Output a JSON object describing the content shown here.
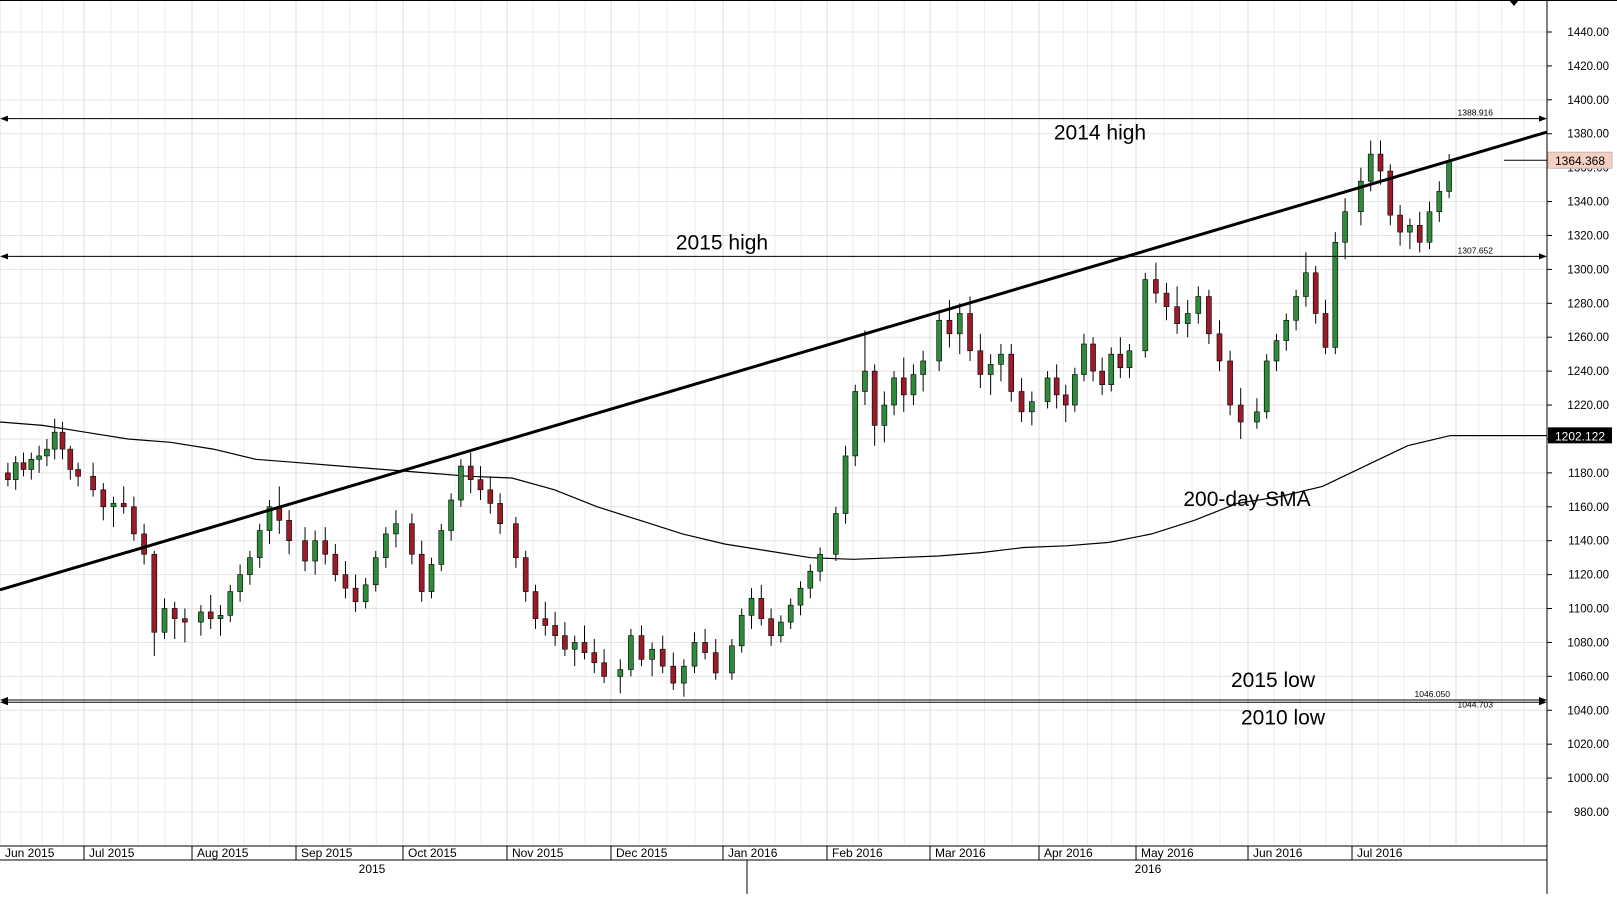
{
  "chart_data": {
    "type": "candlestick",
    "title": "",
    "ylim": [
      960,
      1460
    ],
    "y_ticks": [
      "1440.00",
      "1420.00",
      "1400.00",
      "1380.00",
      "1360.00",
      "1340.00",
      "1320.00",
      "1300.00",
      "1280.00",
      "1260.00",
      "1240.00",
      "1220.00",
      "1200.00",
      "1180.00",
      "1160.00",
      "1140.00",
      "1120.00",
      "1100.00",
      "1080.00",
      "1060.00",
      "1040.00",
      "1020.00",
      "1000.00",
      "980.00"
    ],
    "x_month_labels": [
      "Jun 2015",
      "Jul 2015",
      "Aug 2015",
      "Sep 2015",
      "Oct 2015",
      "Nov 2015",
      "Dec 2015",
      "Jan 2016",
      "Feb 2016",
      "Mar 2016",
      "Apr 2016",
      "May 2016",
      "Jun 2016",
      "Jul 2016"
    ],
    "x_year_labels": [
      "2015",
      "2016"
    ],
    "last_price_label": "1364.368",
    "sma_value_label": "1202.122",
    "horizontal_levels": [
      {
        "value": 1388.916,
        "label": "1388.916",
        "annotation": "2014 high"
      },
      {
        "value": 1307.652,
        "label": "1307.652",
        "annotation": "2015 high"
      },
      {
        "value": 1046.05,
        "label": "1046.050",
        "annotation": "2015 low"
      },
      {
        "value": 1044.703,
        "label": "1044.703",
        "annotation": "2010 low"
      }
    ],
    "trendline": {
      "start": 1111,
      "end": 1381
    },
    "sma_label": "200-day SMA",
    "sma_series": [
      1210,
      1208,
      1204,
      1200,
      1198,
      1194,
      1188,
      1186,
      1184,
      1182,
      1180,
      1178,
      1177,
      1170,
      1160,
      1152,
      1144,
      1138,
      1134,
      1130,
      1129,
      1130,
      1131,
      1133,
      1136,
      1137,
      1139,
      1144,
      1152,
      1162,
      1166,
      1172,
      1184,
      1196,
      1202,
      1202
    ],
    "candles": [
      {
        "month": "Jun 2015",
        "ohlc": [
          [
            1180,
            1186,
            1172,
            1176
          ],
          [
            1176,
            1190,
            1170,
            1186
          ],
          [
            1186,
            1192,
            1178,
            1182
          ],
          [
            1182,
            1192,
            1176,
            1188
          ],
          [
            1188,
            1196,
            1180,
            1190
          ],
          [
            1190,
            1200,
            1184,
            1194
          ],
          [
            1194,
            1212,
            1188,
            1204
          ],
          [
            1204,
            1210,
            1188,
            1194
          ],
          [
            1194,
            1196,
            1176,
            1182
          ],
          [
            1182,
            1186,
            1172,
            1178
          ]
        ]
      },
      {
        "month": "Jul 2015",
        "ohlc": [
          [
            1178,
            1186,
            1166,
            1170
          ],
          [
            1170,
            1174,
            1152,
            1160
          ],
          [
            1160,
            1166,
            1148,
            1162
          ],
          [
            1162,
            1172,
            1156,
            1160
          ],
          [
            1160,
            1166,
            1140,
            1144
          ],
          [
            1144,
            1150,
            1126,
            1132
          ],
          [
            1132,
            1134,
            1072,
            1086
          ],
          [
            1086,
            1106,
            1082,
            1100
          ],
          [
            1100,
            1104,
            1082,
            1094
          ],
          [
            1094,
            1100,
            1080,
            1092
          ]
        ]
      },
      {
        "month": "Aug 2015",
        "ohlc": [
          [
            1092,
            1102,
            1084,
            1098
          ],
          [
            1098,
            1108,
            1088,
            1094
          ],
          [
            1094,
            1102,
            1084,
            1096
          ],
          [
            1096,
            1114,
            1092,
            1110
          ],
          [
            1110,
            1126,
            1104,
            1120
          ],
          [
            1120,
            1134,
            1114,
            1130
          ],
          [
            1130,
            1150,
            1124,
            1146
          ],
          [
            1146,
            1164,
            1138,
            1160
          ],
          [
            1160,
            1172,
            1144,
            1152
          ],
          [
            1152,
            1158,
            1132,
            1140
          ]
        ]
      },
      {
        "month": "Sep 2015",
        "ohlc": [
          [
            1140,
            1148,
            1122,
            1128
          ],
          [
            1128,
            1146,
            1120,
            1140
          ],
          [
            1140,
            1148,
            1126,
            1132
          ],
          [
            1132,
            1138,
            1116,
            1120
          ],
          [
            1120,
            1128,
            1106,
            1112
          ],
          [
            1112,
            1120,
            1098,
            1104
          ],
          [
            1104,
            1118,
            1100,
            1114
          ],
          [
            1114,
            1134,
            1110,
            1130
          ],
          [
            1130,
            1148,
            1124,
            1144
          ],
          [
            1144,
            1158,
            1136,
            1150
          ]
        ]
      },
      {
        "month": "Oct 2015",
        "ohlc": [
          [
            1150,
            1156,
            1126,
            1132
          ],
          [
            1132,
            1140,
            1104,
            1110
          ],
          [
            1110,
            1130,
            1106,
            1126
          ],
          [
            1126,
            1150,
            1122,
            1146
          ],
          [
            1146,
            1168,
            1140,
            1164
          ],
          [
            1164,
            1188,
            1160,
            1184
          ],
          [
            1184,
            1192,
            1168,
            1176
          ],
          [
            1176,
            1184,
            1164,
            1170
          ],
          [
            1170,
            1178,
            1156,
            1162
          ],
          [
            1162,
            1168,
            1144,
            1150
          ]
        ]
      },
      {
        "month": "Nov 2015",
        "ohlc": [
          [
            1150,
            1154,
            1124,
            1130
          ],
          [
            1130,
            1134,
            1104,
            1110
          ],
          [
            1110,
            1114,
            1088,
            1094
          ],
          [
            1094,
            1104,
            1084,
            1090
          ],
          [
            1090,
            1098,
            1078,
            1084
          ],
          [
            1084,
            1092,
            1072,
            1076
          ],
          [
            1076,
            1084,
            1066,
            1080
          ],
          [
            1080,
            1090,
            1070,
            1074
          ],
          [
            1074,
            1082,
            1062,
            1068
          ],
          [
            1068,
            1076,
            1056,
            1060
          ]
        ]
      },
      {
        "month": "Dec 2015",
        "ohlc": [
          [
            1060,
            1070,
            1050,
            1064
          ],
          [
            1064,
            1088,
            1060,
            1084
          ],
          [
            1084,
            1090,
            1066,
            1070
          ],
          [
            1070,
            1080,
            1060,
            1076
          ],
          [
            1076,
            1084,
            1062,
            1066
          ],
          [
            1066,
            1074,
            1052,
            1056
          ],
          [
            1056,
            1070,
            1048,
            1066
          ],
          [
            1066,
            1086,
            1062,
            1080
          ],
          [
            1080,
            1088,
            1070,
            1074
          ],
          [
            1074,
            1082,
            1058,
            1062
          ]
        ]
      },
      {
        "month": "Jan 2016",
        "ohlc": [
          [
            1062,
            1082,
            1058,
            1078
          ],
          [
            1078,
            1100,
            1074,
            1096
          ],
          [
            1096,
            1112,
            1088,
            1106
          ],
          [
            1106,
            1114,
            1090,
            1094
          ],
          [
            1094,
            1100,
            1078,
            1084
          ],
          [
            1084,
            1096,
            1080,
            1092
          ],
          [
            1092,
            1106,
            1088,
            1102
          ],
          [
            1102,
            1116,
            1096,
            1112
          ],
          [
            1112,
            1126,
            1106,
            1122
          ],
          [
            1122,
            1136,
            1116,
            1132
          ]
        ]
      },
      {
        "month": "Feb 2016",
        "ohlc": [
          [
            1132,
            1160,
            1128,
            1156
          ],
          [
            1156,
            1196,
            1150,
            1190
          ],
          [
            1190,
            1232,
            1184,
            1228
          ],
          [
            1228,
            1264,
            1220,
            1240
          ],
          [
            1240,
            1244,
            1196,
            1208
          ],
          [
            1208,
            1228,
            1198,
            1220
          ],
          [
            1220,
            1240,
            1214,
            1236
          ],
          [
            1236,
            1248,
            1216,
            1226
          ],
          [
            1226,
            1244,
            1220,
            1238
          ],
          [
            1238,
            1252,
            1228,
            1246
          ]
        ]
      },
      {
        "month": "Mar 2016",
        "ohlc": [
          [
            1246,
            1276,
            1240,
            1270
          ],
          [
            1270,
            1282,
            1254,
            1262
          ],
          [
            1262,
            1280,
            1250,
            1274
          ],
          [
            1274,
            1284,
            1246,
            1252
          ],
          [
            1252,
            1262,
            1230,
            1238
          ],
          [
            1238,
            1250,
            1226,
            1244
          ],
          [
            1244,
            1256,
            1234,
            1250
          ],
          [
            1250,
            1256,
            1222,
            1228
          ],
          [
            1228,
            1236,
            1210,
            1216
          ],
          [
            1216,
            1228,
            1208,
            1222
          ]
        ]
      },
      {
        "month": "Apr 2016",
        "ohlc": [
          [
            1222,
            1240,
            1218,
            1236
          ],
          [
            1236,
            1244,
            1218,
            1226
          ],
          [
            1226,
            1232,
            1210,
            1220
          ],
          [
            1220,
            1242,
            1216,
            1238
          ],
          [
            1238,
            1262,
            1234,
            1256
          ],
          [
            1256,
            1260,
            1234,
            1240
          ],
          [
            1240,
            1248,
            1226,
            1232
          ],
          [
            1232,
            1254,
            1228,
            1250
          ],
          [
            1250,
            1260,
            1236,
            1242
          ],
          [
            1242,
            1256,
            1236,
            1252
          ]
        ]
      },
      {
        "month": "May 2016",
        "ohlc": [
          [
            1252,
            1298,
            1248,
            1294
          ],
          [
            1294,
            1304,
            1280,
            1286
          ],
          [
            1286,
            1292,
            1270,
            1278
          ],
          [
            1278,
            1290,
            1262,
            1268
          ],
          [
            1268,
            1282,
            1260,
            1274
          ],
          [
            1274,
            1290,
            1268,
            1284
          ],
          [
            1284,
            1288,
            1256,
            1262
          ],
          [
            1262,
            1270,
            1240,
            1246
          ],
          [
            1246,
            1252,
            1214,
            1220
          ],
          [
            1220,
            1230,
            1200,
            1210
          ]
        ]
      },
      {
        "month": "Jun 2016",
        "ohlc": [
          [
            1210,
            1224,
            1206,
            1216
          ],
          [
            1216,
            1250,
            1212,
            1246
          ],
          [
            1246,
            1262,
            1240,
            1258
          ],
          [
            1258,
            1274,
            1252,
            1270
          ],
          [
            1270,
            1288,
            1264,
            1284
          ],
          [
            1284,
            1310,
            1278,
            1298
          ],
          [
            1298,
            1302,
            1268,
            1274
          ],
          [
            1274,
            1282,
            1250,
            1254
          ],
          [
            1254,
            1322,
            1250,
            1316
          ],
          [
            1316,
            1342,
            1306,
            1334
          ]
        ]
      },
      {
        "month": "Jul 2016",
        "ohlc": [
          [
            1334,
            1360,
            1326,
            1352
          ],
          [
            1352,
            1376,
            1346,
            1368
          ],
          [
            1368,
            1376,
            1350,
            1358
          ],
          [
            1358,
            1362,
            1326,
            1332
          ],
          [
            1332,
            1338,
            1314,
            1322
          ],
          [
            1322,
            1330,
            1312,
            1326
          ],
          [
            1326,
            1334,
            1310,
            1316
          ],
          [
            1316,
            1340,
            1312,
            1334
          ],
          [
            1334,
            1352,
            1328,
            1346
          ],
          [
            1346,
            1368,
            1342,
            1364
          ]
        ]
      }
    ]
  }
}
